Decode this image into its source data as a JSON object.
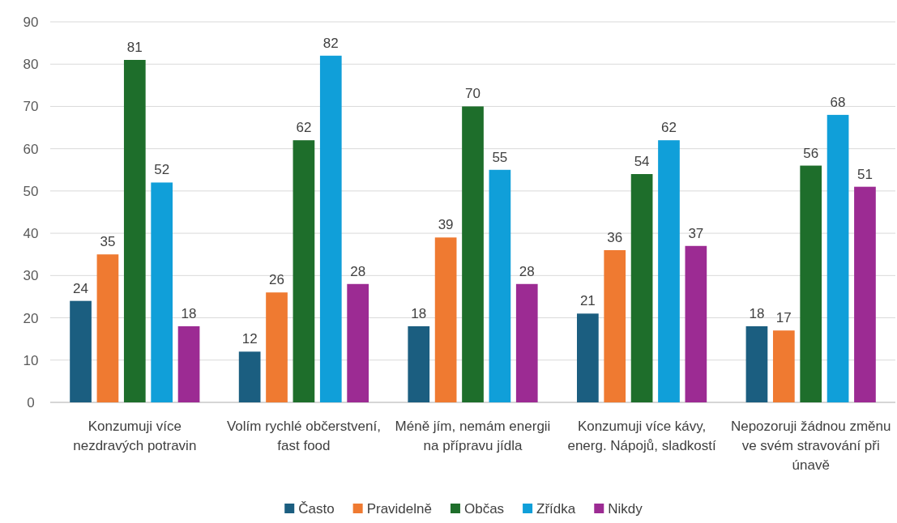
{
  "chart_data": {
    "type": "bar",
    "categories": [
      "Konzumuji více nezdravých potravin",
      "Volím rychlé občerstvení, fast food",
      "Méně jím, nemám energii na přípravu jídla",
      "Konzumuji více kávy, energ. Nápojů, sladkostí",
      "Nepozoruji žádnou změnu ve svém stravování při únavě"
    ],
    "series": [
      {
        "name": "Často",
        "color": "#1b5e80",
        "values": [
          24,
          12,
          18,
          21,
          18
        ]
      },
      {
        "name": "Pravidelně",
        "color": "#ef7a31",
        "values": [
          35,
          26,
          39,
          36,
          17
        ]
      },
      {
        "name": "Občas",
        "color": "#1e6e2b",
        "values": [
          81,
          62,
          70,
          54,
          56
        ]
      },
      {
        "name": "Zřídka",
        "color": "#109fd9",
        "values": [
          52,
          82,
          55,
          62,
          68
        ]
      },
      {
        "name": "Nikdy",
        "color": "#9c2b93",
        "values": [
          18,
          28,
          28,
          37,
          51
        ]
      }
    ],
    "ylim": [
      0,
      90
    ],
    "yticks": [
      0,
      10,
      20,
      30,
      40,
      50,
      60,
      70,
      80,
      90
    ],
    "grid": "y",
    "legend": "bottom",
    "data_labels": true
  }
}
